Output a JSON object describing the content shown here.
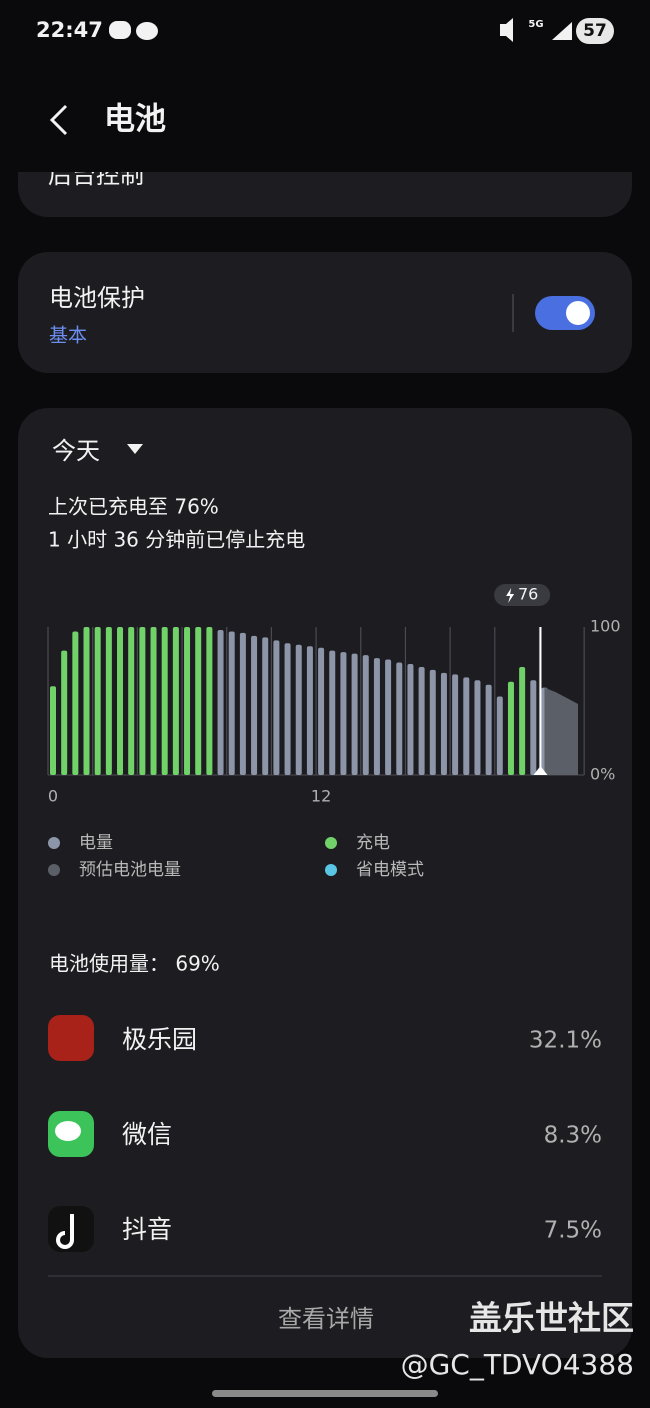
{
  "status_bar": {
    "time": "22:47",
    "network": "5G",
    "battery": "57"
  },
  "header": {
    "title": "电池"
  },
  "cards": {
    "background_control": "后台控制",
    "battery_protection": {
      "title": "电池保护",
      "subtitle": "基本"
    }
  },
  "summary": {
    "period": "今天",
    "last_charge": "上次已充电至 76%",
    "stopped": "1 小时 36 分钟前已停止充电"
  },
  "chart_data": {
    "type": "bar",
    "categories": [
      "0",
      null,
      null,
      null,
      null,
      null,
      null,
      null,
      null,
      null,
      null,
      null,
      null,
      null,
      null,
      null,
      null,
      null,
      null,
      null,
      null,
      null,
      null,
      null,
      "12",
      null,
      null,
      null,
      null,
      null,
      null,
      null,
      null,
      null,
      null,
      null,
      null,
      null,
      null,
      null,
      null,
      null,
      null,
      null,
      null,
      null,
      null,
      null
    ],
    "series": [
      {
        "name": "电量",
        "color": "#8d95a8",
        "values": [
          null,
          null,
          null,
          null,
          null,
          null,
          null,
          null,
          null,
          null,
          null,
          null,
          null,
          null,
          null,
          98,
          97,
          96,
          94,
          93,
          91,
          89,
          88,
          87,
          86,
          84,
          83,
          82,
          81,
          79,
          78,
          76,
          75,
          73,
          71,
          69,
          68,
          66,
          64,
          61,
          53,
          null,
          null,
          64,
          59,
          null,
          null,
          null
        ]
      },
      {
        "name": "充电",
        "color": "#72d26a",
        "values": [
          60,
          84,
          97,
          100,
          100,
          100,
          100,
          100,
          100,
          100,
          100,
          100,
          100,
          100,
          100,
          null,
          null,
          null,
          null,
          null,
          null,
          null,
          null,
          null,
          null,
          null,
          null,
          null,
          null,
          null,
          null,
          null,
          null,
          null,
          null,
          null,
          null,
          null,
          null,
          null,
          null,
          63,
          73,
          null,
          null,
          null,
          null,
          null
        ]
      },
      {
        "name": "预估电池电量",
        "color": "#5b5f68",
        "mark": "area",
        "values": [
          null,
          null,
          null,
          null,
          null,
          null,
          null,
          null,
          null,
          null,
          null,
          null,
          null,
          null,
          null,
          null,
          null,
          null,
          null,
          null,
          null,
          null,
          null,
          null,
          null,
          null,
          null,
          null,
          null,
          null,
          null,
          null,
          null,
          null,
          null,
          null,
          null,
          null,
          null,
          null,
          null,
          null,
          null,
          null,
          59,
          56,
          52,
          48
        ]
      },
      {
        "name": "省电模式",
        "color": "#5ac6e6",
        "values": [
          null,
          null,
          null,
          null,
          null,
          null,
          null,
          null,
          null,
          null,
          null,
          null,
          null,
          null,
          null,
          null,
          null,
          null,
          null,
          null,
          null,
          null,
          null,
          null,
          null,
          null,
          null,
          null,
          null,
          null,
          null,
          null,
          null,
          null,
          null,
          null,
          null,
          null,
          null,
          null,
          null,
          null,
          null,
          null,
          null,
          null,
          null,
          null
        ]
      }
    ],
    "ylim": [
      0,
      100
    ],
    "yticks": [
      {
        "value": 0,
        "label": "0%"
      },
      100
    ],
    "annotation": "76"
  },
  "usage": {
    "title": "电池使用量：  69%",
    "apps": [
      {
        "name": "极乐园",
        "percent": "32.1%"
      },
      {
        "name": "微信",
        "percent": "8.3%"
      },
      {
        "name": "抖音",
        "percent": "7.5%"
      }
    ],
    "details": "查看详情"
  },
  "watermark": {
    "site": "盖乐世社区",
    "user": "@GC_TDVO4388"
  }
}
